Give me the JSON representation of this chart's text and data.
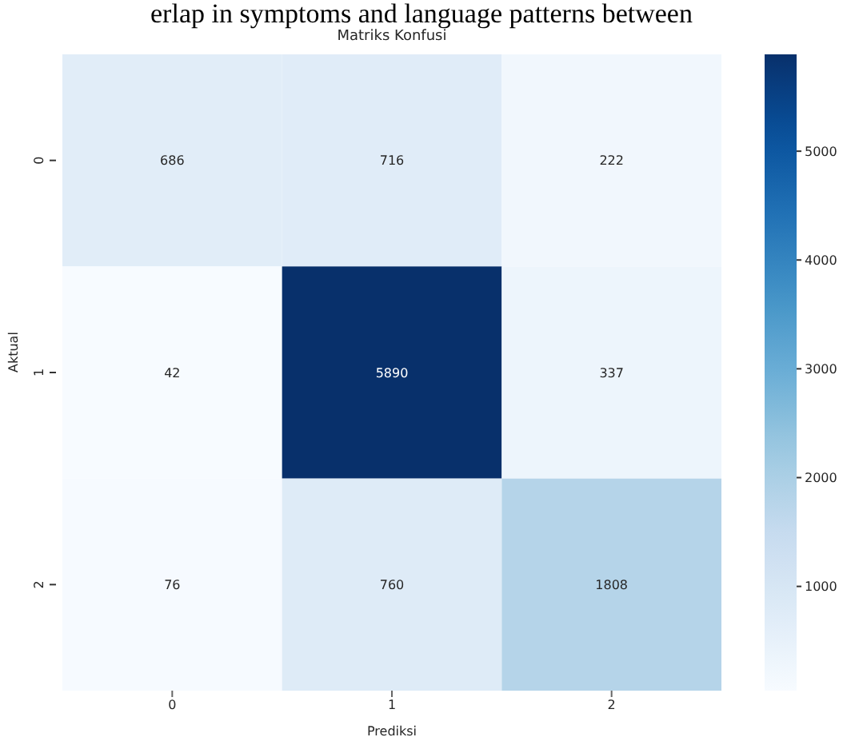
{
  "chart_data": {
    "type": "heatmap",
    "title": "Matriks Konfusi",
    "xlabel": "Prediksi",
    "ylabel": "Aktual",
    "categories": [
      "0",
      "1",
      "2"
    ],
    "y_categories": [
      "0",
      "1",
      "2"
    ],
    "cells": [
      [
        686,
        716,
        222
      ],
      [
        42,
        5890,
        337
      ],
      [
        76,
        760,
        1808
      ]
    ],
    "clim": [
      42,
      5890
    ],
    "cticks": [
      1000,
      2000,
      3000,
      4000,
      5000
    ],
    "data_labels": true,
    "annotations": [
      "erlap in symptoms and language patterns between"
    ]
  }
}
